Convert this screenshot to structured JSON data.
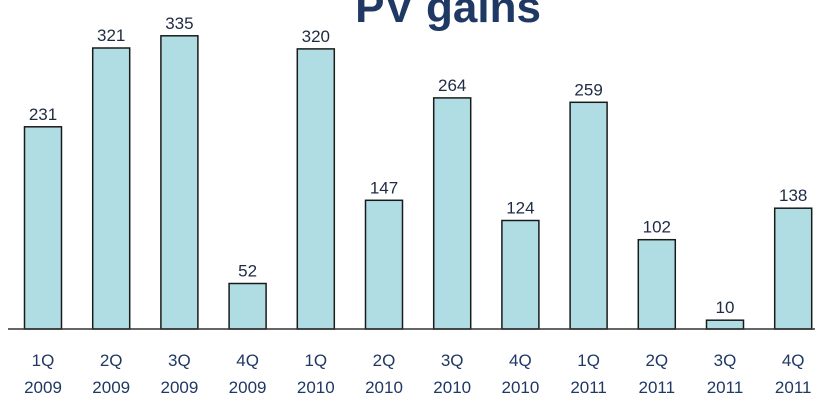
{
  "chart_data": {
    "type": "bar",
    "title": "PV gains",
    "xlabel": "",
    "ylabel": "",
    "ylim": [
      0,
      345
    ],
    "grid": false,
    "legend": "none",
    "categories": [
      [
        "1Q",
        "2009"
      ],
      [
        "2Q",
        "2009"
      ],
      [
        "3Q",
        "2009"
      ],
      [
        "4Q",
        "2009"
      ],
      [
        "1Q",
        "2010"
      ],
      [
        "2Q",
        "2010"
      ],
      [
        "3Q",
        "2010"
      ],
      [
        "4Q",
        "2010"
      ],
      [
        "1Q",
        "2011"
      ],
      [
        "2Q",
        "2011"
      ],
      [
        "3Q",
        "2011"
      ],
      [
        "4Q",
        "2011"
      ]
    ],
    "values": [
      231,
      321,
      335,
      52,
      320,
      147,
      264,
      124,
      259,
      102,
      10,
      138
    ],
    "colors": {
      "bar_fill": "#b0dde3",
      "bar_stroke": "#1a1a1a",
      "title": "#1f3864",
      "tick_label": "#1f3864",
      "value_label": "#1f2a44",
      "axis": "#333333"
    }
  }
}
